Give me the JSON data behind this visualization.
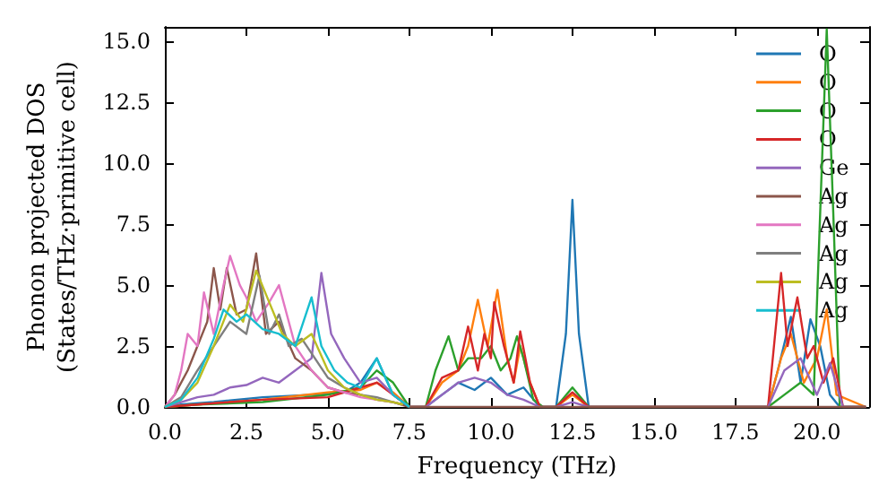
{
  "chart_data": {
    "type": "line",
    "xlabel": "Frequency (THz)",
    "ylabel": "Phonon projected DOS\n(States/THz·primitive cell)",
    "xlim": [
      0,
      21.6
    ],
    "ylim": [
      0,
      15.6
    ],
    "xticks": [
      {
        "value": 0,
        "label": "0.0"
      },
      {
        "value": 2.5,
        "label": "2.5"
      },
      {
        "value": 5,
        "label": "5.0"
      },
      {
        "value": 7.5,
        "label": "7.5"
      },
      {
        "value": 10,
        "label": "10.0"
      },
      {
        "value": 12.5,
        "label": "12.5"
      },
      {
        "value": 15,
        "label": "15.0"
      },
      {
        "value": 17.5,
        "label": "17.5"
      },
      {
        "value": 20,
        "label": "20.0"
      }
    ],
    "yticks": [
      {
        "value": 0,
        "label": "0.0"
      },
      {
        "value": 2.5,
        "label": "2.5"
      },
      {
        "value": 5,
        "label": "5.0"
      },
      {
        "value": 7.5,
        "label": "7.5"
      },
      {
        "value": 10,
        "label": "10.0"
      },
      {
        "value": 12.5,
        "label": "12.5"
      },
      {
        "value": 15,
        "label": "15.0"
      }
    ],
    "grid": false,
    "legend": "top right",
    "marker": "none",
    "line_style": "solid",
    "series": [
      {
        "name": "O",
        "color": "#1f77b4",
        "x": [
          0,
          0.5,
          1.5,
          3,
          4.5,
          5.5,
          6,
          6.5,
          7,
          7.5,
          8,
          8.5,
          9,
          9.5,
          10,
          10.5,
          11,
          11.5,
          12,
          12.3,
          12.5,
          12.7,
          13,
          18.5,
          18.8,
          19.2,
          19.5,
          19.8,
          20.1,
          20.4,
          20.7,
          21.5
        ],
        "values": [
          0,
          0.1,
          0.2,
          0.4,
          0.5,
          0.6,
          1.0,
          2.0,
          0.5,
          0,
          0,
          0.5,
          1.0,
          0.7,
          1.2,
          0.5,
          0.8,
          0,
          0,
          3,
          8.5,
          3,
          0,
          0,
          1.5,
          3.7,
          1.0,
          3.6,
          2.5,
          0.5,
          0,
          0
        ]
      },
      {
        "name": "O",
        "color": "#ff7f0e",
        "x": [
          0,
          1,
          3,
          5,
          6,
          6.5,
          7,
          7.5,
          8,
          8.5,
          9,
          9.3,
          9.6,
          9.9,
          10.2,
          10.5,
          10.7,
          10.9,
          11.2,
          11.5,
          12,
          12.5,
          13,
          18.5,
          18.9,
          19.2,
          19.6,
          20,
          20.3,
          20.6,
          21.5
        ],
        "values": [
          0,
          0.1,
          0.3,
          0.6,
          0.7,
          1.0,
          0.6,
          0,
          0,
          1.0,
          1.5,
          2.5,
          4.4,
          2.5,
          4.8,
          2.0,
          1.0,
          2.5,
          1.0,
          0,
          0,
          0.5,
          0,
          0,
          2.0,
          3.0,
          1.0,
          2.0,
          4.0,
          0.5,
          0
        ]
      },
      {
        "name": "O",
        "color": "#2ca02c",
        "x": [
          0,
          1,
          3,
          5,
          6,
          6.5,
          7,
          7.5,
          8,
          8.3,
          8.7,
          9,
          9.3,
          9.7,
          10,
          10.3,
          10.6,
          10.8,
          11,
          11.3,
          11.6,
          12,
          12.5,
          13,
          18.5,
          19,
          19.5,
          19.9,
          20.1,
          20.3,
          20.5,
          20.7,
          21.5
        ],
        "values": [
          0,
          0.1,
          0.2,
          0.5,
          0.8,
          1.5,
          1.0,
          0,
          0,
          1.5,
          2.9,
          1.5,
          2.0,
          2.0,
          2.5,
          1.5,
          2.0,
          2.9,
          2.0,
          0.3,
          0,
          0,
          0.8,
          0,
          0,
          0.5,
          1.0,
          0.5,
          8.0,
          15.5,
          8.0,
          0,
          0
        ]
      },
      {
        "name": "O",
        "color": "#d62728",
        "x": [
          0,
          1,
          3,
          5,
          6,
          6.5,
          7,
          7.5,
          8,
          8.5,
          9,
          9.3,
          9.6,
          9.8,
          10,
          10.1,
          10.4,
          10.7,
          10.9,
          11.2,
          11.5,
          12,
          12.5,
          13,
          18.5,
          18.9,
          19.1,
          19.4,
          19.7,
          19.9,
          20.2,
          20.5,
          20.8,
          21.5
        ],
        "values": [
          0,
          0.1,
          0.3,
          0.4,
          0.8,
          1.0,
          0.5,
          0,
          0,
          1.2,
          1.5,
          3.3,
          1.5,
          3.0,
          2.0,
          4.3,
          2.5,
          1.0,
          3.1,
          1.0,
          0,
          0,
          0.6,
          0,
          0,
          5.5,
          2.5,
          4.5,
          2.0,
          2.5,
          1.0,
          2.0,
          0,
          0
        ]
      },
      {
        "name": "Ge",
        "color": "#9467bd",
        "x": [
          0,
          0.5,
          1,
          1.5,
          2,
          2.5,
          3,
          3.5,
          4,
          4.5,
          4.8,
          5.1,
          5.5,
          6,
          6.5,
          7,
          7.5,
          8,
          8.5,
          9,
          9.5,
          10,
          10.5,
          11,
          11.5,
          12,
          12.5,
          13,
          18.5,
          19,
          19.5,
          20,
          20.4,
          20.8,
          21.5
        ],
        "values": [
          0,
          0.2,
          0.4,
          0.5,
          0.8,
          0.9,
          1.2,
          1.0,
          1.5,
          2.0,
          5.5,
          3.0,
          2.0,
          1.0,
          1.2,
          0.5,
          0,
          0,
          0.5,
          1.0,
          1.2,
          1.0,
          0.5,
          0.3,
          0,
          0,
          0.2,
          0,
          0,
          1.5,
          2.0,
          0.5,
          1.8,
          0,
          0
        ]
      },
      {
        "name": "Ag",
        "color": "#8c564b",
        "x": [
          0,
          0.3,
          0.7,
          1.0,
          1.3,
          1.5,
          1.7,
          1.9,
          2.2,
          2.5,
          2.8,
          3.1,
          3.5,
          4,
          4.5,
          5,
          5.5,
          6,
          6.5,
          7,
          7.5,
          8,
          21.5
        ],
        "values": [
          0,
          0.5,
          1.5,
          2.5,
          3.5,
          5.7,
          4.0,
          5.7,
          3.8,
          4.0,
          6.3,
          3.0,
          3.5,
          2.0,
          1.5,
          0.8,
          0.6,
          0.5,
          0.3,
          0.2,
          0,
          0,
          0
        ]
      },
      {
        "name": "Ag",
        "color": "#e377c2",
        "x": [
          0,
          0.3,
          0.5,
          0.7,
          1.0,
          1.2,
          1.5,
          1.8,
          2.0,
          2.3,
          2.5,
          2.8,
          3.2,
          3.5,
          4,
          4.5,
          5,
          5.5,
          6,
          6.5,
          7,
          7.3
        ],
        "values": [
          0,
          0.5,
          1.5,
          3.0,
          2.5,
          4.7,
          3.0,
          5.0,
          6.2,
          5.0,
          4.5,
          3.5,
          4.3,
          5.0,
          2.5,
          1.5,
          0.8,
          0.6,
          0.4,
          0.3,
          0.2,
          0.1
        ]
      },
      {
        "name": "Ag",
        "color": "#7f7f7f",
        "x": [
          0,
          0.5,
          1,
          1.5,
          2,
          2.5,
          2.9,
          3.2,
          3.5,
          3.8,
          4.2,
          4.6,
          5,
          5.5,
          6,
          6.5,
          7,
          7.3
        ],
        "values": [
          0,
          0.4,
          1.5,
          2.5,
          3.5,
          3.0,
          5.4,
          3.0,
          3.8,
          2.5,
          2.8,
          2.0,
          1.2,
          0.8,
          0.5,
          0.4,
          0.2,
          0.1
        ]
      },
      {
        "name": "Ag",
        "color": "#bcbd22",
        "x": [
          0,
          0.5,
          1,
          1.5,
          2,
          2.4,
          2.8,
          3.2,
          3.6,
          4,
          4.5,
          5,
          5.5,
          6,
          6.5,
          7,
          7.3
        ],
        "values": [
          0,
          0.3,
          1.0,
          2.5,
          4.2,
          3.5,
          5.6,
          4.3,
          3.0,
          2.5,
          3.0,
          1.5,
          0.8,
          0.5,
          0.3,
          0.2,
          0.1
        ]
      },
      {
        "name": "Ag",
        "color": "#17becf",
        "x": [
          0,
          0.5,
          1,
          1.5,
          1.8,
          2.2,
          2.5,
          3,
          3.5,
          4,
          4.5,
          4.8,
          5.2,
          5.6,
          6,
          6.5,
          7,
          7.5
        ],
        "values": [
          0,
          0.3,
          1.2,
          2.8,
          4.0,
          3.5,
          3.8,
          3.2,
          3.0,
          2.5,
          4.5,
          2.5,
          1.5,
          1.0,
          0.8,
          2.0,
          0.5,
          0
        ]
      }
    ]
  }
}
